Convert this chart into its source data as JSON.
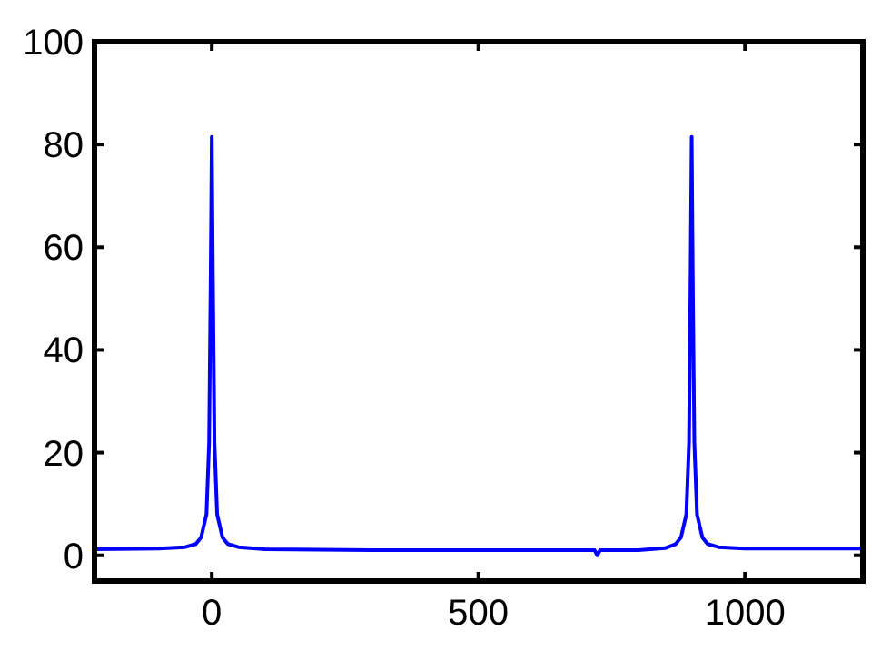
{
  "chart_data": {
    "type": "line",
    "xlim": [
      -220,
      1221
    ],
    "ylim": [
      -5,
      100
    ],
    "xticks": [
      0,
      500,
      1000
    ],
    "yticks": [
      0,
      20,
      40,
      60,
      80,
      100
    ],
    "grid": false,
    "series": [
      {
        "color": "#0000ff",
        "x": [
          -220,
          -100,
          -50,
          -30,
          -20,
          -10,
          -5,
          -2,
          0,
          2,
          5,
          10,
          20,
          30,
          50,
          100,
          300,
          500,
          700,
          718,
          723,
          728,
          800,
          850,
          870,
          880,
          890,
          895,
          898,
          900,
          902,
          905,
          910,
          920,
          930,
          950,
          1000,
          1100,
          1221
        ],
        "values": [
          1.2,
          1.3,
          1.6,
          2.2,
          3.5,
          8,
          22,
          55,
          81.5,
          55,
          22,
          8,
          3.5,
          2.2,
          1.6,
          1.2,
          1,
          1,
          1,
          1,
          0,
          1,
          1,
          1.4,
          2.2,
          3.5,
          8,
          22,
          55,
          81.5,
          55,
          22,
          8,
          3.5,
          2.2,
          1.6,
          1.3,
          1.3,
          1.3
        ]
      }
    ]
  }
}
